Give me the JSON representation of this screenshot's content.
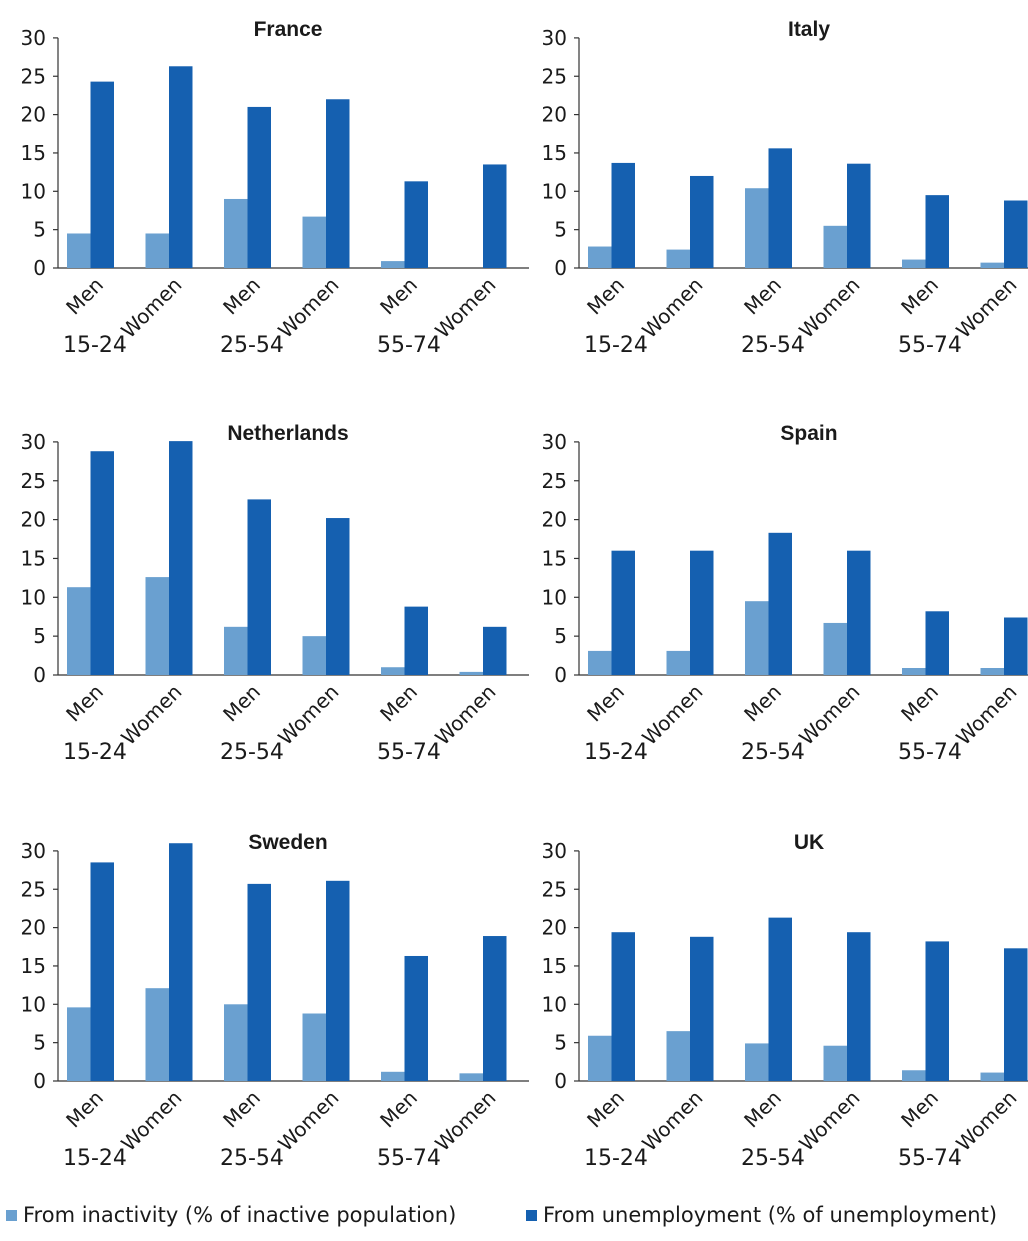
{
  "colors": {
    "inactivity": "#6aa0d0",
    "unemployment": "#1560b0",
    "axis": "#333333"
  },
  "legend": {
    "inactivity_label": "From inactivity (% of inactive population)",
    "unemployment_label": "From unemployment (% of unemployment)"
  },
  "chart_data": [
    {
      "type": "bar",
      "title": "France",
      "categories": [
        "Men",
        "Women",
        "Men",
        "Women",
        "Men",
        "Women"
      ],
      "groups": [
        "15-24",
        "25-54",
        "55-74"
      ],
      "ylim": [
        0,
        30
      ],
      "yticks": [
        "0",
        "5",
        "10",
        "15",
        "20",
        "25",
        "30"
      ],
      "series": [
        {
          "name": "From inactivity (% of inactive population)",
          "values": [
            4.5,
            4.5,
            9,
            6.7,
            0.9,
            0
          ]
        },
        {
          "name": "From unemployment (% of unemployment)",
          "values": [
            24.3,
            26.3,
            21,
            22,
            11.3,
            13.5
          ]
        }
      ]
    },
    {
      "type": "bar",
      "title": "Italy",
      "categories": [
        "Men",
        "Women",
        "Men",
        "Women",
        "Men",
        "Women"
      ],
      "groups": [
        "15-24",
        "25-54",
        "55-74"
      ],
      "ylim": [
        0,
        30
      ],
      "yticks": [
        "0",
        "5",
        "10",
        "15",
        "20",
        "25",
        "30"
      ],
      "series": [
        {
          "name": "From inactivity (% of inactive population)",
          "values": [
            2.8,
            2.4,
            10.4,
            5.5,
            1.1,
            0.7
          ]
        },
        {
          "name": "From unemployment (% of unemployment)",
          "values": [
            13.7,
            12,
            15.6,
            13.6,
            9.5,
            8.8
          ]
        }
      ]
    },
    {
      "type": "bar",
      "title": "Netherlands",
      "categories": [
        "Men",
        "Women",
        "Men",
        "Women",
        "Men",
        "Women"
      ],
      "groups": [
        "15-24",
        "25-54",
        "55-74"
      ],
      "ylim": [
        0,
        30
      ],
      "yticks": [
        "0",
        "5",
        "10",
        "15",
        "20",
        "25",
        "30"
      ],
      "series": [
        {
          "name": "From inactivity (% of inactive population)",
          "values": [
            11.3,
            12.6,
            6.2,
            5,
            1,
            0.4
          ]
        },
        {
          "name": "From unemployment (% of unemployment)",
          "values": [
            28.8,
            30.1,
            22.6,
            20.2,
            8.8,
            6.2
          ]
        }
      ]
    },
    {
      "type": "bar",
      "title": "Spain",
      "categories": [
        "Men",
        "Women",
        "Men",
        "Women",
        "Men",
        "Women"
      ],
      "groups": [
        "15-24",
        "25-54",
        "55-74"
      ],
      "ylim": [
        0,
        30
      ],
      "yticks": [
        "0",
        "5",
        "10",
        "15",
        "20",
        "25",
        "30"
      ],
      "series": [
        {
          "name": "From inactivity (% of inactive population)",
          "values": [
            3.1,
            3.1,
            9.5,
            6.7,
            0.9,
            0.9
          ]
        },
        {
          "name": "From unemployment (% of unemployment)",
          "values": [
            16,
            16,
            18.3,
            16,
            8.2,
            7.4
          ]
        }
      ]
    },
    {
      "type": "bar",
      "title": "Sweden",
      "categories": [
        "Men",
        "Women",
        "Men",
        "Women",
        "Men",
        "Women"
      ],
      "groups": [
        "15-24",
        "25-54",
        "55-74"
      ],
      "ylim": [
        0,
        30
      ],
      "yticks": [
        "0",
        "5",
        "10",
        "15",
        "20",
        "25",
        "30"
      ],
      "series": [
        {
          "name": "From inactivity (% of inactive population)",
          "values": [
            9.6,
            12.1,
            10,
            8.8,
            1.2,
            1
          ]
        },
        {
          "name": "From unemployment (% of unemployment)",
          "values": [
            28.5,
            31,
            25.7,
            26.1,
            16.3,
            18.9
          ]
        }
      ]
    },
    {
      "type": "bar",
      "title": "UK",
      "categories": [
        "Men",
        "Women",
        "Men",
        "Women",
        "Men",
        "Women"
      ],
      "groups": [
        "15-24",
        "25-54",
        "55-74"
      ],
      "ylim": [
        0,
        30
      ],
      "yticks": [
        "0",
        "5",
        "10",
        "15",
        "20",
        "25",
        "30"
      ],
      "series": [
        {
          "name": "From inactivity (% of inactive population)",
          "values": [
            5.9,
            6.5,
            4.9,
            4.6,
            1.4,
            1.1
          ]
        },
        {
          "name": "From unemployment (% of unemployment)",
          "values": [
            19.4,
            18.8,
            21.3,
            19.4,
            18.2,
            17.3
          ]
        }
      ]
    }
  ]
}
